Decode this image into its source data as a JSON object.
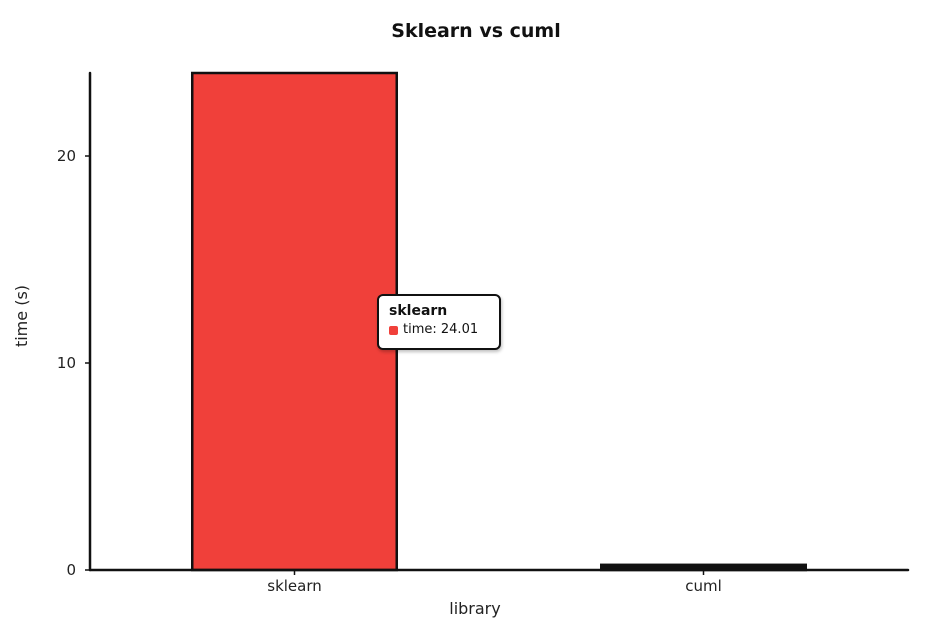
{
  "chart_data": {
    "type": "bar",
    "title": "Sklearn vs cuml",
    "xlabel": "library",
    "ylabel": "time (s)",
    "categories": [
      "sklearn",
      "cuml"
    ],
    "series": [
      {
        "name": "time",
        "values": [
          24.01,
          0.25
        ]
      }
    ],
    "ylim": [
      0,
      24.01
    ],
    "yticks": [
      0,
      10,
      20
    ],
    "grid": false,
    "legend": "none"
  },
  "colors": {
    "bar": "#f0403a",
    "cuml_bar": "#111111",
    "swatch": "#f0403a"
  },
  "tooltip": {
    "title": "sklearn",
    "series_label": "time",
    "separator": ": ",
    "value": "24.01"
  }
}
